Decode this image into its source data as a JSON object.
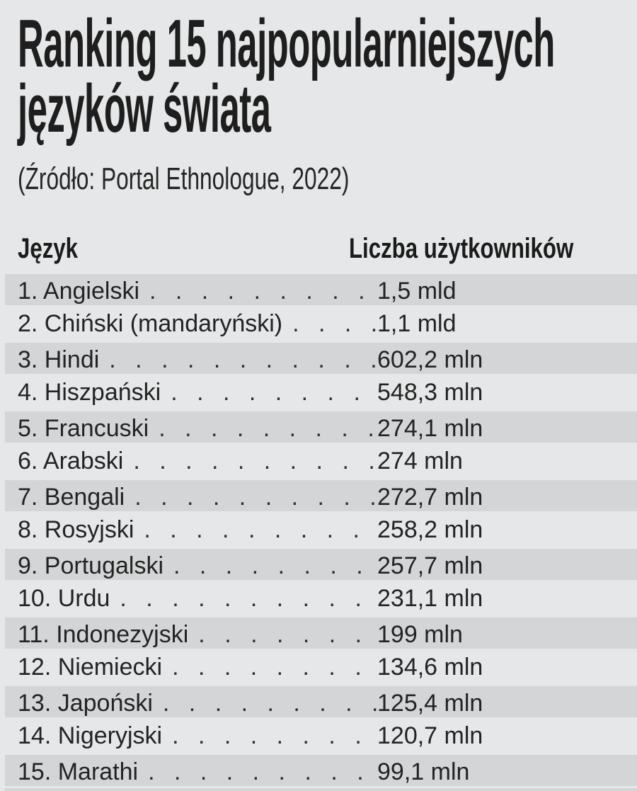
{
  "page": {
    "title_line1": "Ranking 15 najpopularniejszych",
    "title_line2": "języków świata",
    "source": "(Źródło: Portal Ethnologue, 2022)"
  },
  "table": {
    "col_language": "Język",
    "col_users": "Liczba użytkowników",
    "leader": ". . . . . . . . . . . . . . . . . . . . . . . . . . . .",
    "rows": [
      {
        "label": "1. Angielski",
        "value": "1,5 mld"
      },
      {
        "label": "2. Chiński (mandaryński)",
        "value": "1,1 mld"
      },
      {
        "label": "3. Hindi",
        "value": "602,2 mln"
      },
      {
        "label": "4. Hiszpański",
        "value": "548,3 mln"
      },
      {
        "label": "5. Francuski",
        "value": "274,1 mln"
      },
      {
        "label": "6. Arabski",
        "value": "274 mln"
      },
      {
        "label": "7. Bengali",
        "value": "272,7 mln"
      },
      {
        "label": "8. Rosyjski",
        "value": "258,2 mln"
      },
      {
        "label": "9. Portugalski",
        "value": "257,7 mln"
      },
      {
        "label": "10. Urdu",
        "value": "231,1 mln"
      },
      {
        "label": "11. Indonezyjski",
        "value": "199 mln"
      },
      {
        "label": "12. Niemiecki",
        "value": "134,6 mln"
      },
      {
        "label": "13. Japoński",
        "value": "125,4 mln"
      },
      {
        "label": "14. Nigeryjski",
        "value": "120,7 mln"
      },
      {
        "label": "15. Marathi",
        "value": "99,1 mln"
      }
    ]
  },
  "colors": {
    "background": "#e6e7e8",
    "row_band": "#d4d5d6",
    "text": "#212121"
  }
}
